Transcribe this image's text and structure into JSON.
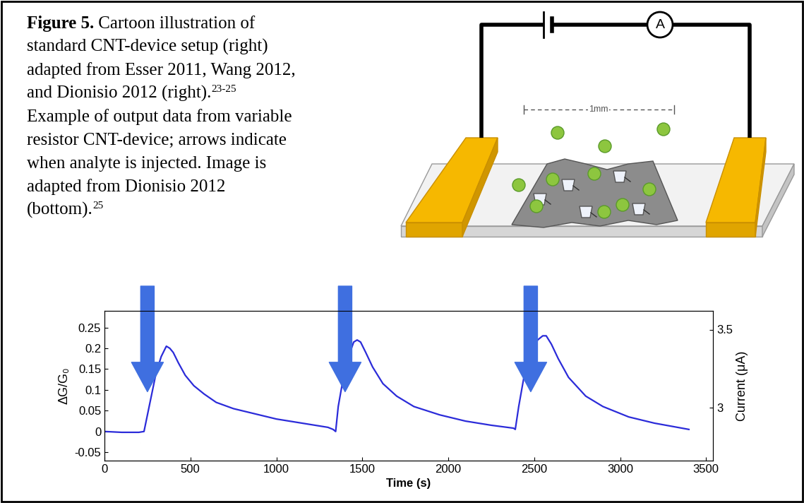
{
  "caption": {
    "lines": [
      [
        {
          "text": "Figure 5.",
          "style": "bold"
        },
        {
          "text": " Cartoon illustration of",
          "style": "normal"
        }
      ],
      [
        {
          "text": "standard CNT-device setup (right)",
          "style": "normal"
        }
      ],
      [
        {
          "text": "adapted from Esser 2011, Wang 2012,",
          "style": "normal"
        }
      ],
      [
        {
          "text": "and Dionisio 2012 (right).",
          "style": "normal"
        },
        {
          "text": "23-25",
          "style": "super"
        }
      ],
      [
        {
          "text": "Example of output data from variable",
          "style": "normal"
        }
      ],
      [
        {
          "text": "resistor CNT-device; arrows indicate",
          "style": "normal"
        }
      ],
      [
        {
          "text": "when analyte is injected. Image is",
          "style": "normal"
        }
      ],
      [
        {
          "text": "adapted from Dionisio 2012",
          "style": "normal"
        }
      ],
      [
        {
          "text": "(bottom).",
          "style": "normal"
        },
        {
          "text": "25",
          "style": "super"
        }
      ]
    ]
  },
  "diagram": {
    "ammeter_label": "A",
    "scale_label": "1mm"
  },
  "chart_data": {
    "type": "line",
    "x_label": "Time (s)",
    "y_label": "ΔG/G₀",
    "y2_label": "Current (μA)",
    "xlim": [
      0,
      3540
    ],
    "xticks": [
      0,
      500,
      1000,
      1500,
      2000,
      2500,
      3000,
      3500
    ],
    "ylim": [
      -0.07,
      0.29
    ],
    "yticks": [
      -0.05,
      0,
      0.05,
      0.1,
      0.15,
      0.2,
      0.25
    ],
    "y2lim": [
      2.66,
      3.62
    ],
    "y2ticks": [
      3,
      3.5
    ],
    "x": [
      0,
      100,
      200,
      230,
      250,
      280,
      300,
      330,
      360,
      380,
      400,
      430,
      470,
      520,
      580,
      650,
      750,
      850,
      1000,
      1150,
      1300,
      1330,
      1345,
      1360,
      1390,
      1420,
      1450,
      1470,
      1490,
      1520,
      1560,
      1620,
      1700,
      1800,
      1950,
      2100,
      2250,
      2380,
      2390,
      2410,
      2440,
      2480,
      2520,
      2550,
      2570,
      2600,
      2640,
      2700,
      2800,
      2900,
      3050,
      3200,
      3400
    ],
    "series": [
      {
        "color": "#2b2bd9",
        "values": [
          0,
          -0.002,
          -0.002,
          0.0,
          0.04,
          0.1,
          0.14,
          0.18,
          0.205,
          0.2,
          0.19,
          0.165,
          0.135,
          0.11,
          0.09,
          0.07,
          0.055,
          0.045,
          0.03,
          0.02,
          0.01,
          0.005,
          0.0,
          0.06,
          0.13,
          0.18,
          0.215,
          0.22,
          0.215,
          0.19,
          0.155,
          0.115,
          0.085,
          0.06,
          0.04,
          0.025,
          0.015,
          0.008,
          0.005,
          0.06,
          0.13,
          0.18,
          0.22,
          0.23,
          0.23,
          0.21,
          0.175,
          0.13,
          0.085,
          0.06,
          0.035,
          0.02,
          0.005
        ]
      }
    ],
    "injections": {
      "x": [
        250,
        1400,
        2480
      ],
      "color": "#3f6fe0"
    }
  }
}
